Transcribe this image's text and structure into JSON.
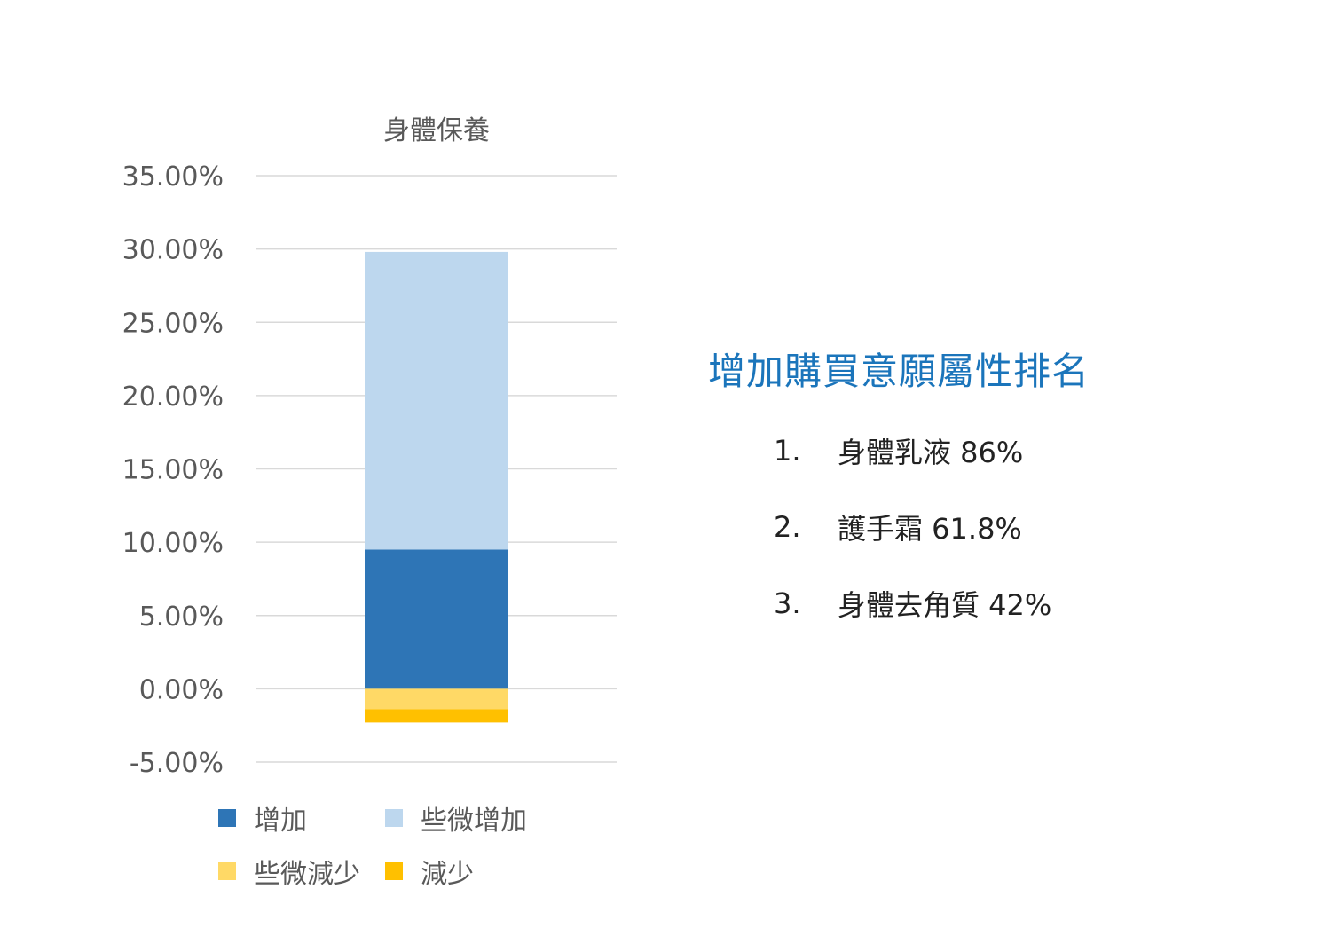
{
  "chart_data": {
    "type": "bar",
    "stacked": true,
    "title": "身體保養",
    "categories": [
      "身體保養"
    ],
    "series": [
      {
        "name": "增加",
        "values": [
          9.5
        ],
        "color": "#2e75b6"
      },
      {
        "name": "些微增加",
        "values": [
          20.3
        ],
        "color": "#bdd7ee"
      },
      {
        "name": "些微減少",
        "values": [
          -1.4
        ],
        "color": "#ffd966"
      },
      {
        "name": "減少",
        "values": [
          -0.9
        ],
        "color": "#ffc000"
      }
    ],
    "ylim": [
      -5,
      35
    ],
    "yticks": [
      35,
      30,
      25,
      20,
      15,
      10,
      5,
      0,
      -5
    ],
    "ytick_labels": [
      "35.00%",
      "30.00%",
      "25.00%",
      "20.00%",
      "15.00%",
      "10.00%",
      "5.00%",
      "0.00%",
      "-5.00%"
    ],
    "grid": true,
    "legend_position": "bottom"
  },
  "panel": {
    "title": "增加購買意願屬性排名",
    "items": [
      {
        "num": "1.",
        "text": "身體乳液 86%"
      },
      {
        "num": "2.",
        "text": "護手霜 61.8%"
      },
      {
        "num": "3.",
        "text": "身體去角質 42%"
      }
    ]
  }
}
